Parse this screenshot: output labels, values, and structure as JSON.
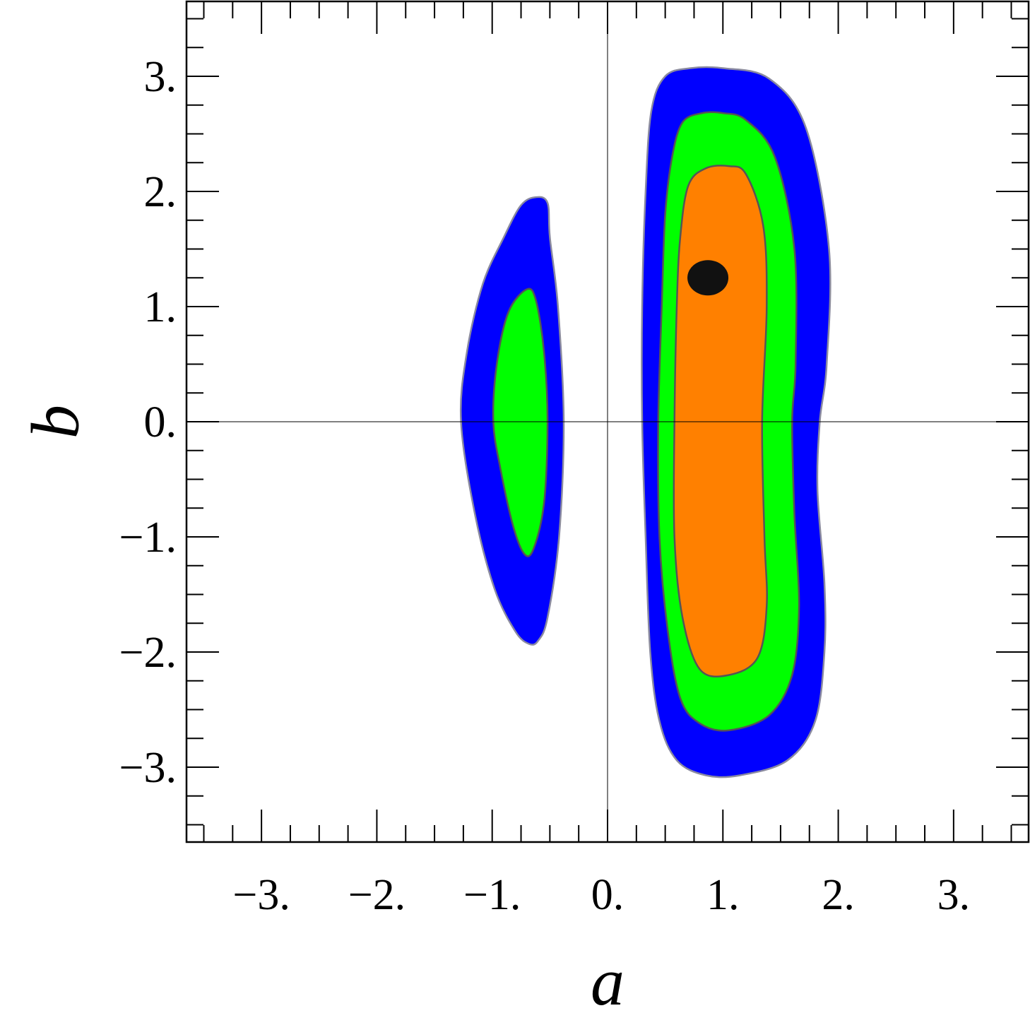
{
  "chart_data": {
    "type": "contour",
    "xlabel": "a",
    "ylabel": "b",
    "xlim": [
      -3.65,
      3.65
    ],
    "ylim": [
      -3.65,
      3.65
    ],
    "x_ticks": [
      -3,
      -2,
      -1,
      0,
      1,
      2,
      3
    ],
    "x_tick_labels": [
      "−3.",
      "−2.",
      "−1.",
      "0.",
      "1.",
      "2.",
      "3."
    ],
    "y_ticks": [
      -3,
      -2,
      -1,
      0,
      1,
      2,
      3
    ],
    "y_tick_labels": [
      "−3.",
      "−2.",
      "−1.",
      "0.",
      "1.",
      "2.",
      "3."
    ],
    "grid": false,
    "reference_lines": {
      "x": 0,
      "y": 0
    },
    "colors": {
      "outer": "#0000ff",
      "middle": "#00ff00",
      "inner": "#ff8000",
      "best_fit": "#111111",
      "frame": "#000000"
    },
    "regions": [
      {
        "name": "right-outer",
        "color": "outer",
        "points": [
          [
            0.5,
            3.0
          ],
          [
            0.72,
            3.07
          ],
          [
            1.0,
            3.07
          ],
          [
            1.4,
            2.98
          ],
          [
            1.72,
            2.55
          ],
          [
            1.92,
            1.5
          ],
          [
            1.9,
            0.5
          ],
          [
            1.84,
            0.0
          ],
          [
            1.82,
            -0.6
          ],
          [
            1.88,
            -1.4
          ],
          [
            1.88,
            -2.0
          ],
          [
            1.8,
            -2.6
          ],
          [
            1.56,
            -2.94
          ],
          [
            1.15,
            -3.07
          ],
          [
            0.85,
            -3.07
          ],
          [
            0.6,
            -2.94
          ],
          [
            0.45,
            -2.6
          ],
          [
            0.37,
            -2.0
          ],
          [
            0.33,
            -1.0
          ],
          [
            0.3,
            0.0
          ],
          [
            0.3,
            1.0
          ],
          [
            0.33,
            2.0
          ],
          [
            0.38,
            2.7
          ]
        ]
      },
      {
        "name": "right-middle",
        "color": "middle",
        "points": [
          [
            0.65,
            2.6
          ],
          [
            0.82,
            2.68
          ],
          [
            1.0,
            2.68
          ],
          [
            1.2,
            2.62
          ],
          [
            1.45,
            2.3
          ],
          [
            1.62,
            1.5
          ],
          [
            1.63,
            0.5
          ],
          [
            1.6,
            0.0
          ],
          [
            1.62,
            -0.8
          ],
          [
            1.66,
            -1.6
          ],
          [
            1.6,
            -2.2
          ],
          [
            1.4,
            -2.55
          ],
          [
            1.05,
            -2.68
          ],
          [
            0.8,
            -2.62
          ],
          [
            0.63,
            -2.4
          ],
          [
            0.52,
            -1.8
          ],
          [
            0.45,
            -1.0
          ],
          [
            0.44,
            0.0
          ],
          [
            0.47,
            1.0
          ],
          [
            0.5,
            1.8
          ],
          [
            0.56,
            2.3
          ]
        ]
      },
      {
        "name": "right-inner",
        "color": "inner",
        "points": [
          [
            0.7,
            2.05
          ],
          [
            0.85,
            2.2
          ],
          [
            1.05,
            2.22
          ],
          [
            1.2,
            2.15
          ],
          [
            1.35,
            1.7
          ],
          [
            1.38,
            1.0
          ],
          [
            1.34,
            0.0
          ],
          [
            1.36,
            -1.0
          ],
          [
            1.38,
            -1.6
          ],
          [
            1.3,
            -2.05
          ],
          [
            1.05,
            -2.2
          ],
          [
            0.8,
            -2.15
          ],
          [
            0.65,
            -1.7
          ],
          [
            0.58,
            -1.0
          ],
          [
            0.58,
            0.0
          ],
          [
            0.6,
            1.0
          ],
          [
            0.63,
            1.6
          ]
        ]
      },
      {
        "name": "left-outer",
        "color": "outer",
        "points": [
          [
            -0.62,
            1.95
          ],
          [
            -0.52,
            1.9
          ],
          [
            -0.5,
            1.6
          ],
          [
            -0.43,
            1.0
          ],
          [
            -0.38,
            0.0
          ],
          [
            -0.42,
            -1.0
          ],
          [
            -0.52,
            -1.7
          ],
          [
            -0.6,
            -1.9
          ],
          [
            -0.68,
            -1.93
          ],
          [
            -0.8,
            -1.82
          ],
          [
            -0.98,
            -1.45
          ],
          [
            -1.15,
            -0.8
          ],
          [
            -1.27,
            0.0
          ],
          [
            -1.22,
            0.6
          ],
          [
            -1.08,
            1.2
          ],
          [
            -0.9,
            1.6
          ],
          [
            -0.75,
            1.88
          ]
        ]
      },
      {
        "name": "left-middle",
        "color": "middle",
        "points": [
          [
            -0.7,
            1.15
          ],
          [
            -0.62,
            1.05
          ],
          [
            -0.55,
            0.6
          ],
          [
            -0.52,
            0.0
          ],
          [
            -0.55,
            -0.7
          ],
          [
            -0.64,
            -1.1
          ],
          [
            -0.72,
            -1.15
          ],
          [
            -0.82,
            -0.9
          ],
          [
            -0.93,
            -0.4
          ],
          [
            -0.99,
            0.0
          ],
          [
            -0.96,
            0.5
          ],
          [
            -0.86,
            0.95
          ]
        ]
      }
    ],
    "best_fit_point": {
      "a": 0.87,
      "b": 1.25
    }
  }
}
